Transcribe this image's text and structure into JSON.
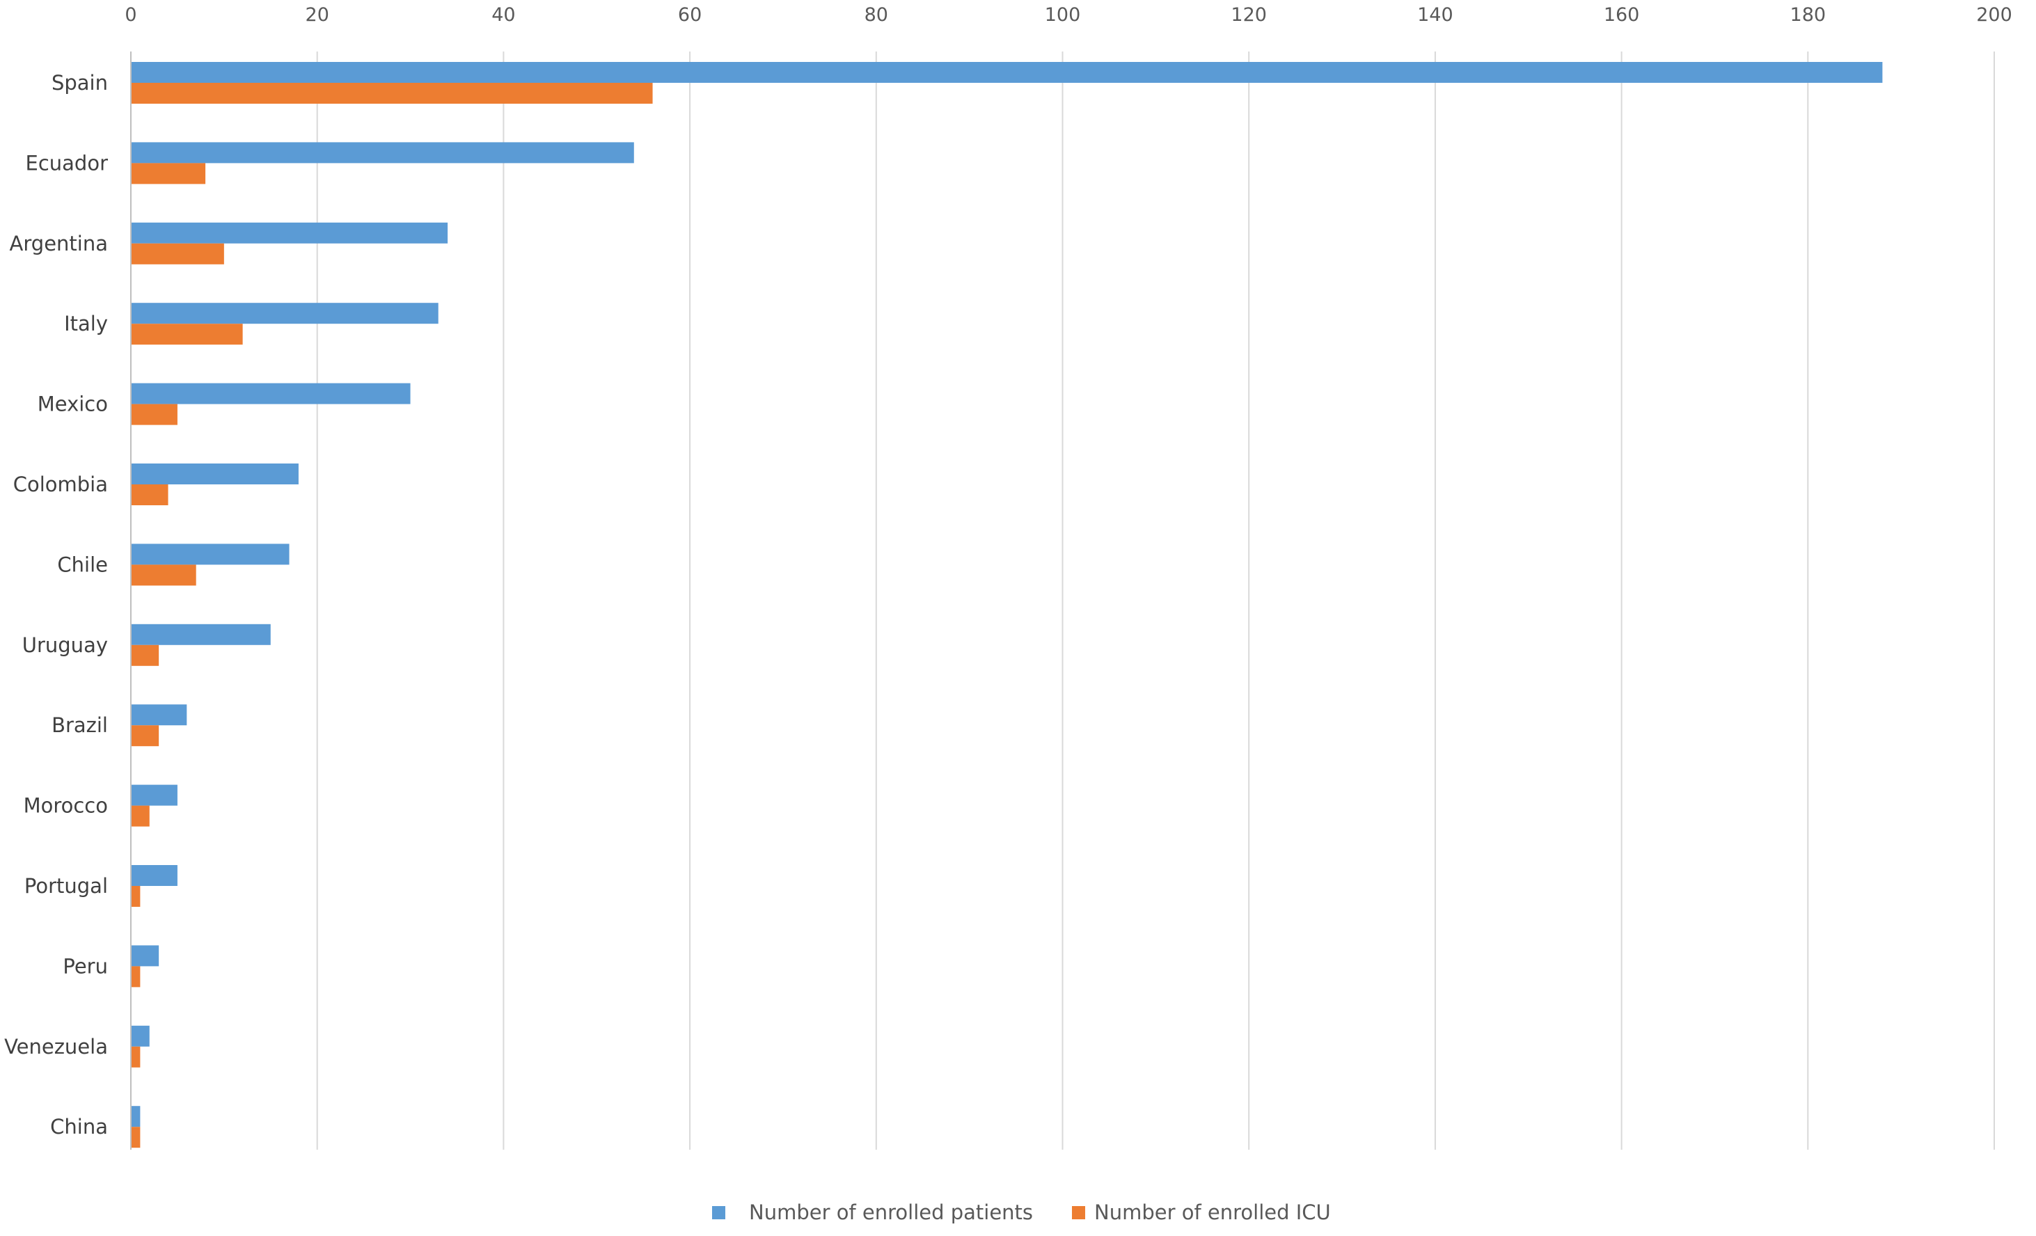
{
  "chart_data": {
    "type": "bar",
    "orientation": "horizontal",
    "categories": [
      "Spain",
      "Ecuador",
      "Argentina",
      "Italy",
      "Mexico",
      "Colombia",
      "Chile",
      "Uruguay",
      "Brazil",
      "Morocco",
      "Portugal",
      "Peru",
      "Venezuela",
      "China"
    ],
    "series": [
      {
        "name": "Number of enrolled patients",
        "color": "#5b9bd5",
        "values": [
          188,
          54,
          34,
          33,
          30,
          18,
          17,
          15,
          6,
          5,
          5,
          3,
          2,
          1
        ]
      },
      {
        "name": "Number of enrolled ICU",
        "color": "#ed7d31",
        "values": [
          56,
          8,
          10,
          12,
          5,
          4,
          7,
          3,
          3,
          2,
          1,
          1,
          1,
          1
        ]
      }
    ],
    "title": "",
    "xlabel": "",
    "ylabel": "",
    "xlim": [
      0,
      200
    ],
    "xticks": [
      0,
      20,
      40,
      60,
      80,
      100,
      120,
      140,
      160,
      180,
      200
    ],
    "x_axis_position": "top",
    "grid": true,
    "legend_position": "bottom-center"
  }
}
